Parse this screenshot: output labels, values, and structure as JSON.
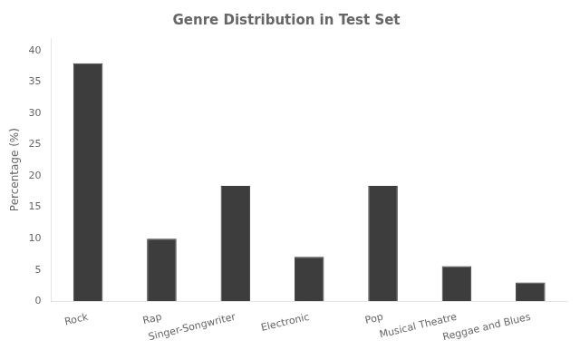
{
  "chart_data": {
    "type": "bar",
    "title": "Genre Distribution in Test Set",
    "categories": [
      "Rock",
      "Rap",
      "Singer-Songwriter",
      "Electronic",
      "Pop",
      "Musical Theatre",
      "Reggae and Blues"
    ],
    "values": [
      38.0,
      10.0,
      18.4,
      7.1,
      18.4,
      5.6,
      3.0
    ],
    "color": "#3d3d3d",
    "ylabel": "Percentage (%)",
    "ylim": [
      0,
      42
    ],
    "yticks": [
      0,
      5,
      10,
      15,
      20,
      25,
      30,
      35,
      40
    ],
    "grid": false
  }
}
